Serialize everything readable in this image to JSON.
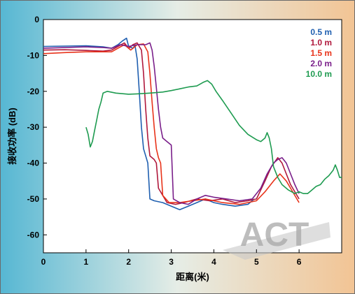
{
  "chart_data": {
    "type": "line",
    "title": "",
    "xlabel": "距离(米)",
    "ylabel": "接收功率 (dB)",
    "xlim": [
      0,
      7
    ],
    "ylim": [
      -65,
      0
    ],
    "x_ticks": [
      0,
      1,
      2,
      3,
      4,
      5,
      6
    ],
    "y_ticks": [
      0,
      -10,
      -20,
      -30,
      -40,
      -50,
      -60
    ],
    "grid": false,
    "legend_position": "top-right",
    "watermark": "ACT",
    "series": [
      {
        "name": "0.5 m",
        "color": "#1f5fb0",
        "points": [
          [
            0,
            -7.5
          ],
          [
            0.5,
            -7.4
          ],
          [
            1.0,
            -7.3
          ],
          [
            1.4,
            -7.6
          ],
          [
            1.6,
            -8.0
          ],
          [
            1.75,
            -7.0
          ],
          [
            1.85,
            -6.0
          ],
          [
            1.95,
            -5.2
          ],
          [
            2.0,
            -7.5
          ],
          [
            2.1,
            -8.0
          ],
          [
            2.15,
            -7.2
          ],
          [
            2.2,
            -11
          ],
          [
            2.25,
            -20
          ],
          [
            2.3,
            -30
          ],
          [
            2.35,
            -36
          ],
          [
            2.4,
            -38
          ],
          [
            2.45,
            -40
          ],
          [
            2.5,
            -50
          ],
          [
            2.6,
            -50.5
          ],
          [
            2.8,
            -51
          ],
          [
            3.0,
            -52
          ],
          [
            3.2,
            -53
          ],
          [
            3.4,
            -52
          ],
          [
            3.6,
            -51
          ],
          [
            3.8,
            -50
          ],
          [
            4.0,
            -51
          ],
          [
            4.2,
            -51.5
          ],
          [
            4.5,
            -52
          ],
          [
            4.8,
            -51.5
          ],
          [
            4.95,
            -50
          ]
        ]
      },
      {
        "name": "1.0 m",
        "color": "#b0183c",
        "points": [
          [
            0,
            -8.5
          ],
          [
            0.5,
            -8.4
          ],
          [
            1.0,
            -8.6
          ],
          [
            1.4,
            -8.8
          ],
          [
            1.6,
            -8.5
          ],
          [
            1.75,
            -7.5
          ],
          [
            1.9,
            -6.5
          ],
          [
            2.0,
            -8.0
          ],
          [
            2.1,
            -7.0
          ],
          [
            2.2,
            -6.5
          ],
          [
            2.3,
            -8.5
          ],
          [
            2.35,
            -15
          ],
          [
            2.4,
            -25
          ],
          [
            2.45,
            -33
          ],
          [
            2.5,
            -38
          ],
          [
            2.6,
            -39
          ],
          [
            2.65,
            -40
          ],
          [
            2.7,
            -47
          ],
          [
            2.9,
            -51
          ],
          [
            3.1,
            -51.5
          ],
          [
            3.3,
            -51
          ],
          [
            3.6,
            -50
          ],
          [
            3.9,
            -50.5
          ],
          [
            4.2,
            -50
          ],
          [
            4.5,
            -51
          ],
          [
            4.8,
            -50.5
          ],
          [
            5.0,
            -50
          ],
          [
            5.2,
            -45
          ],
          [
            5.35,
            -41
          ],
          [
            5.5,
            -38.5
          ],
          [
            5.6,
            -40
          ],
          [
            5.7,
            -43
          ],
          [
            5.8,
            -46
          ],
          [
            5.9,
            -48
          ],
          [
            6.0,
            -50
          ]
        ]
      },
      {
        "name": "1.5 m",
        "color": "#e8331a",
        "points": [
          [
            0,
            -9.5
          ],
          [
            0.5,
            -9.2
          ],
          [
            1.0,
            -9.0
          ],
          [
            1.4,
            -9.0
          ],
          [
            1.6,
            -9.0
          ],
          [
            1.75,
            -8.0
          ],
          [
            1.9,
            -7.0
          ],
          [
            2.05,
            -8.5
          ],
          [
            2.2,
            -7.0
          ],
          [
            2.35,
            -6.8
          ],
          [
            2.45,
            -9.0
          ],
          [
            2.5,
            -15
          ],
          [
            2.55,
            -23
          ],
          [
            2.6,
            -30
          ],
          [
            2.65,
            -36
          ],
          [
            2.7,
            -38.5
          ],
          [
            2.75,
            -40
          ],
          [
            2.8,
            -49
          ],
          [
            2.95,
            -51
          ],
          [
            3.2,
            -51
          ],
          [
            3.5,
            -50.5
          ],
          [
            3.8,
            -50
          ],
          [
            4.2,
            -51
          ],
          [
            4.6,
            -51.5
          ],
          [
            5.0,
            -50.5
          ],
          [
            5.2,
            -48
          ],
          [
            5.4,
            -45
          ],
          [
            5.55,
            -43
          ],
          [
            5.7,
            -45
          ],
          [
            5.85,
            -48
          ],
          [
            6.0,
            -51
          ]
        ]
      },
      {
        "name": "2.0 m",
        "color": "#7a1f8a",
        "points": [
          [
            0,
            -8.0
          ],
          [
            0.5,
            -7.8
          ],
          [
            1.0,
            -7.6
          ],
          [
            1.4,
            -7.8
          ],
          [
            1.6,
            -8.0
          ],
          [
            1.8,
            -7.0
          ],
          [
            2.0,
            -7.5
          ],
          [
            2.2,
            -7.0
          ],
          [
            2.4,
            -7.0
          ],
          [
            2.5,
            -6.5
          ],
          [
            2.55,
            -8.5
          ],
          [
            2.6,
            -13
          ],
          [
            2.65,
            -19
          ],
          [
            2.7,
            -25
          ],
          [
            2.75,
            -30
          ],
          [
            2.8,
            -33
          ],
          [
            2.9,
            -34
          ],
          [
            3.0,
            -35
          ],
          [
            3.05,
            -50
          ],
          [
            3.2,
            -51
          ],
          [
            3.4,
            -51.5
          ],
          [
            3.6,
            -50
          ],
          [
            3.8,
            -49
          ],
          [
            4.0,
            -49.5
          ],
          [
            4.3,
            -50
          ],
          [
            4.6,
            -50.5
          ],
          [
            4.9,
            -50
          ],
          [
            5.1,
            -47
          ],
          [
            5.25,
            -43
          ],
          [
            5.4,
            -40
          ],
          [
            5.5,
            -39
          ],
          [
            5.6,
            -38.5
          ],
          [
            5.7,
            -40
          ],
          [
            5.8,
            -43
          ],
          [
            5.9,
            -46
          ],
          [
            6.0,
            -48.5
          ]
        ]
      },
      {
        "name": "10.0 m",
        "color": "#1e9b50",
        "points": [
          [
            1.0,
            -30
          ],
          [
            1.05,
            -32
          ],
          [
            1.1,
            -35.5
          ],
          [
            1.15,
            -34
          ],
          [
            1.2,
            -31
          ],
          [
            1.25,
            -28
          ],
          [
            1.3,
            -25
          ],
          [
            1.35,
            -23
          ],
          [
            1.4,
            -20.5
          ],
          [
            1.5,
            -20
          ],
          [
            1.7,
            -20.5
          ],
          [
            2.0,
            -20.8
          ],
          [
            2.2,
            -20.7
          ],
          [
            2.5,
            -20.5
          ],
          [
            2.8,
            -20.2
          ],
          [
            3.0,
            -19.8
          ],
          [
            3.2,
            -19.3
          ],
          [
            3.4,
            -18.8
          ],
          [
            3.6,
            -18.5
          ],
          [
            3.75,
            -17.5
          ],
          [
            3.85,
            -17.0
          ],
          [
            3.95,
            -18.0
          ],
          [
            4.05,
            -20.0
          ],
          [
            4.2,
            -22.5
          ],
          [
            4.4,
            -26.0
          ],
          [
            4.6,
            -29.5
          ],
          [
            4.8,
            -32.0
          ],
          [
            5.0,
            -33.5
          ],
          [
            5.1,
            -34
          ],
          [
            5.2,
            -33
          ],
          [
            5.25,
            -31.5
          ],
          [
            5.3,
            -33
          ],
          [
            5.35,
            -36
          ],
          [
            5.4,
            -41
          ],
          [
            5.5,
            -44
          ],
          [
            5.6,
            -46
          ],
          [
            5.75,
            -47.5
          ],
          [
            5.9,
            -48.5
          ],
          [
            6.0,
            -48
          ],
          [
            6.1,
            -48.5
          ],
          [
            6.2,
            -48.5
          ],
          [
            6.3,
            -47.5
          ],
          [
            6.4,
            -46.5
          ],
          [
            6.5,
            -46
          ],
          [
            6.6,
            -44.5
          ],
          [
            6.7,
            -43.5
          ],
          [
            6.8,
            -42
          ],
          [
            6.85,
            -40.5
          ],
          [
            6.9,
            -42
          ],
          [
            6.95,
            -44
          ],
          [
            7.0,
            -44
          ]
        ]
      }
    ]
  }
}
